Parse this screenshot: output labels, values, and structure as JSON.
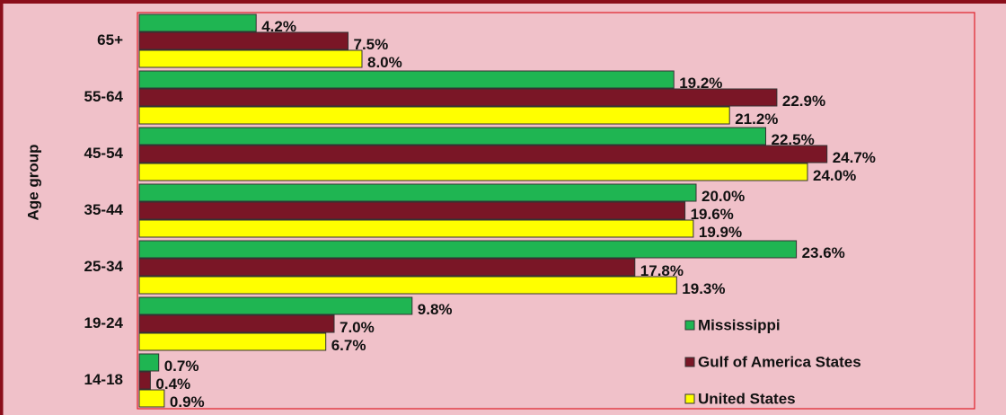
{
  "chart_data": {
    "type": "hbar",
    "y_label": "Age group",
    "categories": [
      "65+",
      "55-64",
      "45-54",
      "35-44",
      "25-34",
      "19-24",
      "14-18"
    ],
    "series": [
      {
        "name": "Mississippi",
        "color": "#1fb552",
        "values": [
          4.2,
          19.2,
          22.5,
          20.0,
          23.6,
          9.8,
          0.7
        ],
        "value_labels": [
          "4.2%",
          "19.2%",
          "22.5%",
          "20.0%",
          "23.6%",
          "9.8%",
          "0.7%"
        ]
      },
      {
        "name": "Gulf of America States",
        "color": "#7a1626",
        "values": [
          7.5,
          22.9,
          24.7,
          19.6,
          17.8,
          7.0,
          0.4
        ],
        "value_labels": [
          "7.5%",
          "22.9%",
          "24.7%",
          "19.6%",
          "17.8%",
          "7.0%",
          "0.4%"
        ]
      },
      {
        "name": "United States",
        "color": "#ffff00",
        "values": [
          8.0,
          21.2,
          24.0,
          19.9,
          19.3,
          6.7,
          0.9
        ],
        "value_labels": [
          "8.0%",
          "21.2%",
          "24.0%",
          "19.9%",
          "19.3%",
          "6.7%",
          "0.9%"
        ]
      }
    ],
    "xlim": [
      0,
      30
    ],
    "legend": "lower right"
  }
}
